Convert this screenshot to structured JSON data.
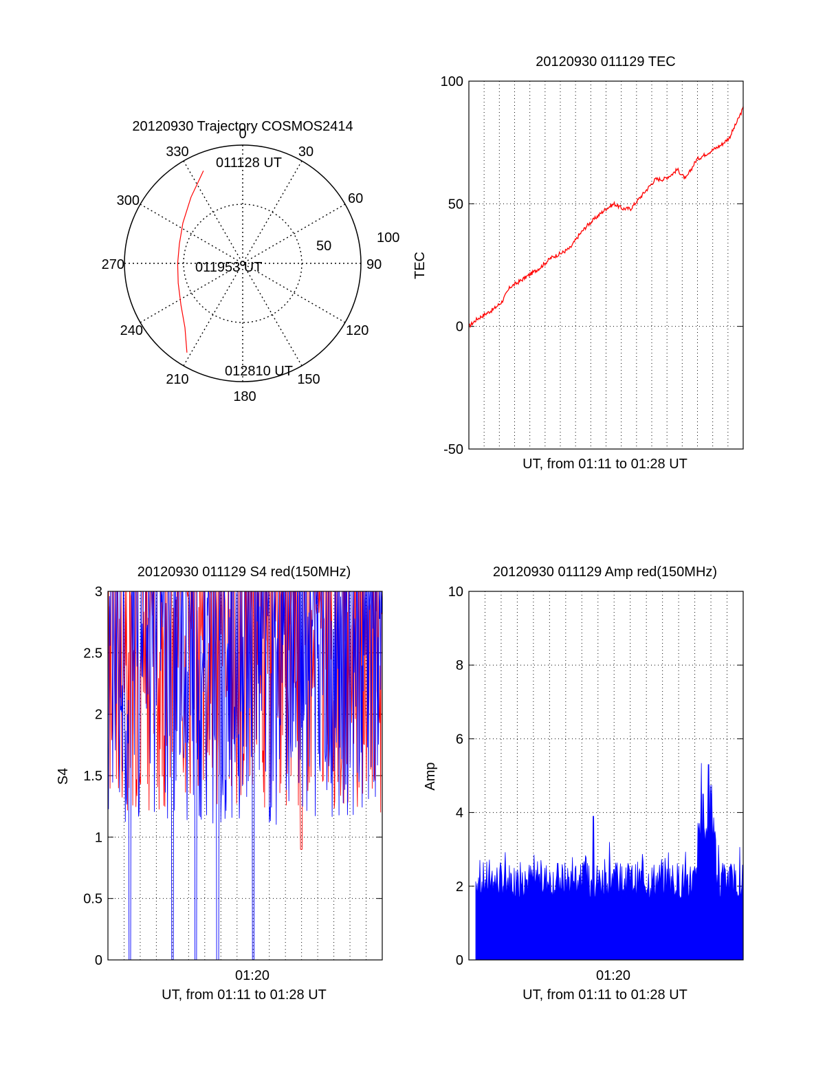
{
  "chart_data": [
    {
      "type": "polar",
      "title": "20120930 Trajectory COSMOS2414",
      "azimuth_labels": [
        "0",
        "30",
        "60",
        "90",
        "120",
        "150",
        "180",
        "210",
        "240",
        "270",
        "300",
        "330"
      ],
      "radius_labels": [
        "50",
        "100"
      ],
      "rlim": [
        0,
        100
      ],
      "grid": true,
      "annotations": {
        "start": "011128 UT",
        "mid": "011953 UT",
        "end": "012810 UT"
      },
      "trajectory": {
        "color": "#ff0000",
        "azimuth_deg": [
          337,
          322,
          304,
          287,
          270,
          253,
          236,
          222,
          212
        ],
        "radius": [
          85,
          71,
          61,
          56,
          55,
          57,
          63,
          73,
          89
        ]
      }
    },
    {
      "type": "line",
      "title": "20120930 011129 TEC",
      "ylabel": "TEC",
      "xlabel": "UT, from 01:11 to 01:28 UT",
      "ylim": [
        -50,
        100
      ],
      "yticks": [
        "-50",
        "0",
        "50",
        "100"
      ],
      "grid": true,
      "series": [
        {
          "color": "#ff0000",
          "x": [
            0,
            0.03,
            0.06,
            0.09,
            0.12,
            0.15,
            0.18,
            0.22,
            0.26,
            0.3,
            0.34,
            0.37,
            0.4,
            0.43,
            0.46,
            0.5,
            0.53,
            0.56,
            0.59,
            0.62,
            0.65,
            0.68,
            0.71,
            0.74,
            0.76,
            0.79,
            0.83,
            0.86,
            0.89,
            0.92,
            0.95,
            0.98,
            1.0
          ],
          "y": [
            0,
            3,
            5,
            7,
            10,
            16,
            18,
            21,
            24,
            28,
            30,
            32,
            37,
            41,
            44,
            48,
            50,
            48,
            48,
            52,
            56,
            60,
            60,
            62,
            64,
            60,
            68,
            70,
            72,
            74,
            77,
            84,
            89
          ]
        }
      ]
    },
    {
      "type": "line",
      "title": "20120930 011129 S4 red(150MHz)",
      "ylabel": "S4",
      "xlabel": "UT, from 01:11 to 01:28 UT",
      "xtick": "01:20",
      "ylim": [
        0,
        3
      ],
      "yticks": [
        "0",
        "0.5",
        "1",
        "1.5",
        "2",
        "2.5",
        "3"
      ],
      "grid": true,
      "series": [
        {
          "color": "#ff0000",
          "low": 1.2,
          "high": 3.0,
          "dips": [
            {
              "x": 0.705,
              "y": 0.9
            }
          ]
        },
        {
          "color": "#0000ff",
          "low": 1.1,
          "high": 3.0,
          "dips": [
            {
              "x": 0.08,
              "y": 0
            },
            {
              "x": 0.235,
              "y": 0
            },
            {
              "x": 0.32,
              "y": 0
            },
            {
              "x": 0.4,
              "y": 0
            },
            {
              "x": 0.53,
              "y": 0
            }
          ]
        }
      ]
    },
    {
      "type": "area",
      "title": "20120930 011129 Amp red(150MHz)",
      "ylabel": "Amp",
      "xlabel": "UT, from 01:11 to 01:28 UT",
      "xtick": "01:20",
      "ylim": [
        0,
        10
      ],
      "yticks": [
        "0",
        "2",
        "4",
        "6",
        "8",
        "10"
      ],
      "grid": true,
      "series": [
        {
          "color": "#0000ff",
          "base": 2.2,
          "peaks": [
            {
              "x": 0.44,
              "y": 3.9
            },
            {
              "x": 0.87,
              "y": 5.3
            },
            {
              "x": 0.85,
              "y": 4.5
            }
          ]
        }
      ]
    }
  ]
}
